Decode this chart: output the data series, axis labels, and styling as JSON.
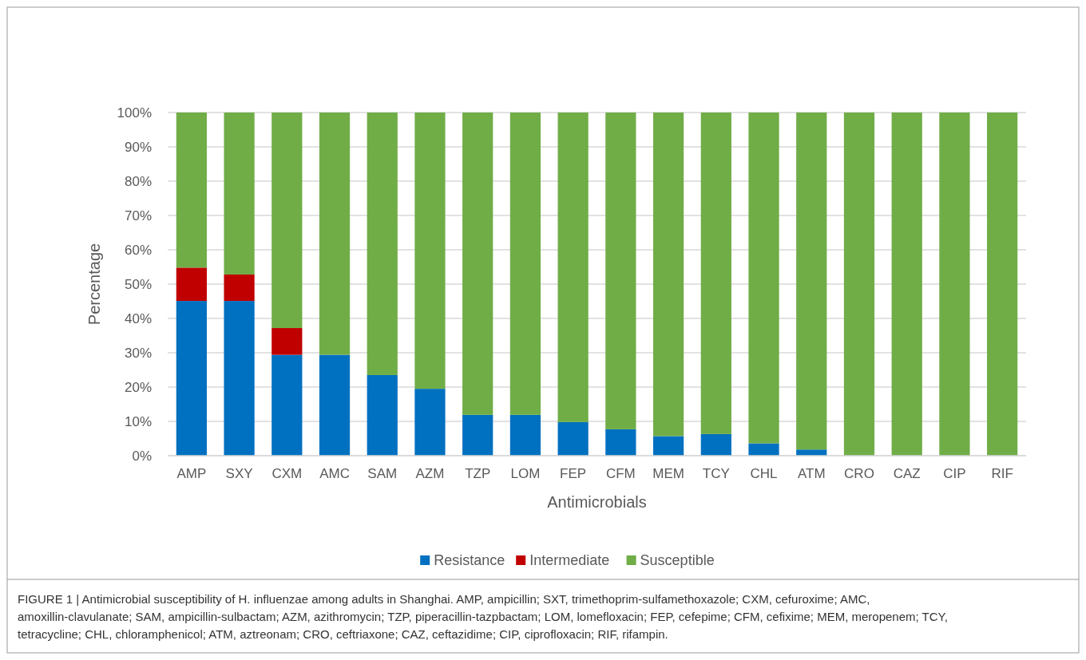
{
  "chart_data": {
    "type": "bar",
    "stacked": true,
    "xlabel": "Antimicrobials",
    "ylabel": "Percentage",
    "categories": [
      "AMP",
      "SXY",
      "CXM",
      "AMC",
      "SAM",
      "AZM",
      "TZP",
      "LOM",
      "FEP",
      "CFM",
      "MEM",
      "TCY",
      "CHL",
      "ATM",
      "CRO",
      "CAZ",
      "CIP",
      "RIF"
    ],
    "series": [
      {
        "name": "Resistance",
        "color": "#0070c0",
        "values": [
          45.1,
          45.1,
          29.4,
          29.4,
          23.5,
          19.5,
          11.9,
          11.9,
          9.8,
          7.7,
          5.7,
          6.3,
          3.6,
          1.8,
          0,
          0,
          0,
          0
        ]
      },
      {
        "name": "Intermediate",
        "color": "#c00000",
        "values": [
          9.7,
          7.7,
          7.8,
          0,
          0,
          0,
          0,
          0,
          0,
          0,
          0,
          0,
          0,
          0,
          0,
          0,
          0,
          0
        ]
      },
      {
        "name": "Susceptible",
        "color": "#70ad47",
        "values": [
          45.2,
          47.2,
          62.8,
          70.6,
          76.5,
          80.5,
          88.1,
          88.1,
          90.2,
          92.3,
          94.3,
          93.7,
          96.4,
          98.2,
          100,
          100,
          100,
          100
        ]
      }
    ],
    "ylim": [
      0,
      100
    ],
    "yticks": [
      {
        "value": 0,
        "label": "0%"
      },
      {
        "value": 10,
        "label": "10%"
      },
      {
        "value": 20,
        "label": "20%"
      },
      {
        "value": 30,
        "label": "30%"
      },
      {
        "value": 40,
        "label": "40%"
      },
      {
        "value": 50,
        "label": "50%"
      },
      {
        "value": 60,
        "label": "60%"
      },
      {
        "value": 70,
        "label": "70%"
      },
      {
        "value": 80,
        "label": "80%"
      },
      {
        "value": 90,
        "label": "90%"
      },
      {
        "value": 100,
        "label": "100%"
      }
    ],
    "grid": "y",
    "legend": "bottom",
    "annotations": [
      "FIGURE 1 | Antimicrobial susceptibility of H. influenzae among adults in Shanghai. AMP, ampicillin; SXT, trimethoprim-sulfamethoxazole; CXM, cefuroxime; AMC, amoxillin-clavulanate; SAM, ampicillin-sulbactam; AZM, azithromycin; TZP, piperacillin-tazpbactam; LOM, lomefloxacin; FEP, cefepime; CFM, cefixime; MEM, meropenem; TCY, tetracycline; CHL, chloramphenicol; ATM, aztreonam; CRO, ceftriaxone; CAZ, ceftazidime; CIP, ciprofloxacin; RIF, rifampin."
    ]
  }
}
